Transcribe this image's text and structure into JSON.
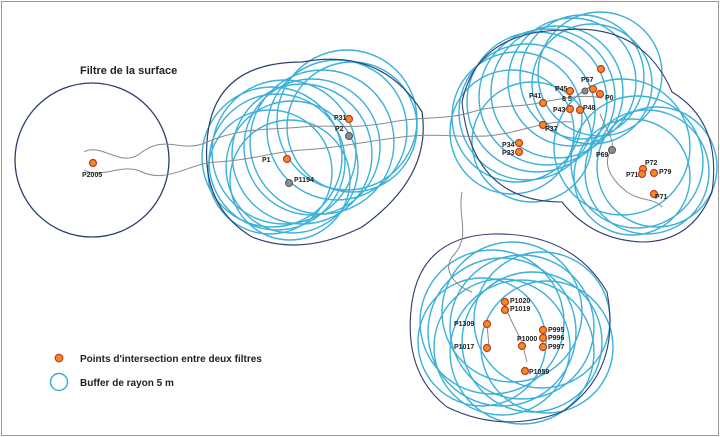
{
  "title": "Filtre de la surface",
  "legend": {
    "points": "Points d'intersection entre deux filtres",
    "buffer": "Buffer de rayon 5 m"
  },
  "colors": {
    "buffer": "#3bb0d8",
    "filter": "#2c3e6e",
    "track": "#8a8a8a",
    "point_fill": "#f28c1e",
    "point_stroke": "#c0392b",
    "grey_point": "#8c8c8c"
  },
  "point_labels": [
    "P2005",
    "P1194",
    "P1",
    "P31",
    "P2",
    "P41",
    "P45",
    "P57",
    "8 5",
    "P0",
    "P43",
    "P48",
    "P37",
    "P34",
    "P33",
    "P69",
    "P72",
    "P79",
    "P71",
    "P71",
    "P1020",
    "P1019",
    "P1309",
    "P995",
    "P1000",
    "P996",
    "P997",
    "P1017",
    "P1059"
  ]
}
